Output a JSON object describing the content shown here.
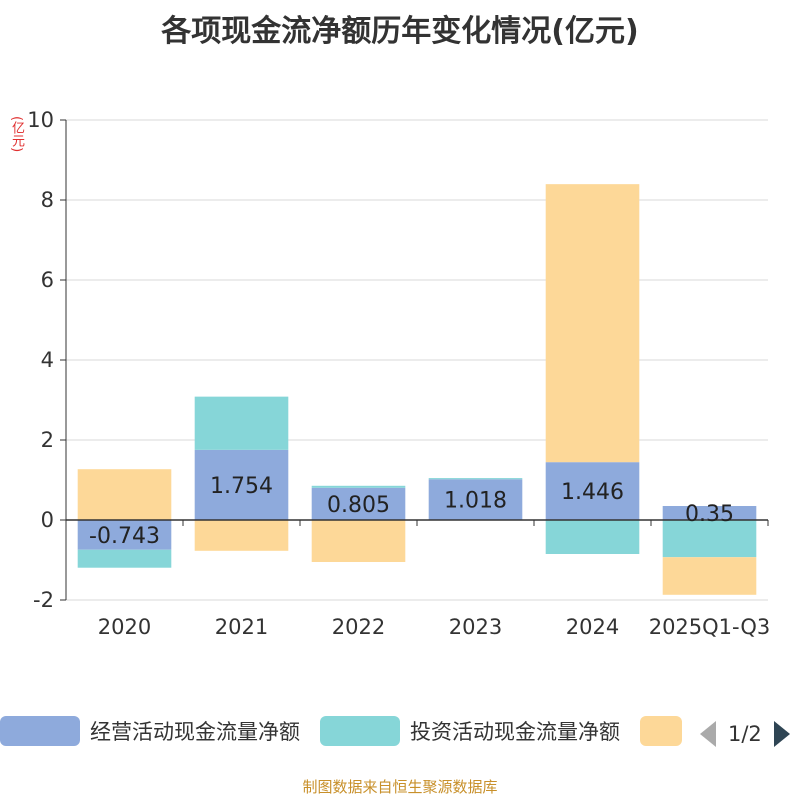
{
  "title": "各项现金流净额历年变化情况(亿元)",
  "unit_label": "(亿元)",
  "source": "制图数据来自恒生聚源数据库",
  "legend": {
    "items": [
      {
        "label": "经营活动现金流量净额",
        "color": "#8eaadc"
      },
      {
        "label": "投资活动现金流量净额",
        "color": "#86d6d8"
      },
      {
        "label": "",
        "color": "#fdd898"
      }
    ],
    "page": "1/2"
  },
  "chart_data": {
    "type": "bar",
    "stacked": true,
    "title": "各项现金流净额历年变化情况(亿元)",
    "ylabel": "(亿元)",
    "ylim": [
      -2,
      10
    ],
    "yticks": [
      -2,
      0,
      2,
      4,
      6,
      8,
      10
    ],
    "categories": [
      "2020",
      "2021",
      "2022",
      "2023",
      "2024",
      "2025Q1-Q3"
    ],
    "series": [
      {
        "name": "经营活动现金流量净额",
        "color": "#8eaadc",
        "values": [
          -0.743,
          1.754,
          0.805,
          1.018,
          1.446,
          0.35
        ],
        "labels": [
          "-0.743",
          "1.754",
          "0.805",
          "1.018",
          "1.446",
          "0.35"
        ]
      },
      {
        "name": "投资活动现金流量净额",
        "color": "#86d6d8",
        "values": [
          -0.45,
          1.33,
          0.05,
          0.03,
          -0.85,
          -0.93
        ]
      },
      {
        "name": "",
        "color": "#fdd898",
        "values": [
          1.27,
          -0.77,
          -1.05,
          0.0,
          6.95,
          -0.94
        ]
      }
    ]
  }
}
